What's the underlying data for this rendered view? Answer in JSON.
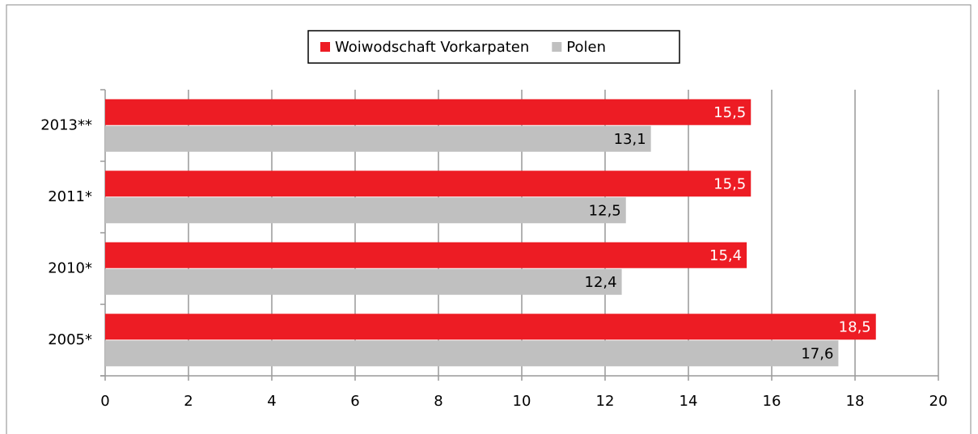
{
  "chart_data": {
    "type": "bar",
    "orientation": "horizontal",
    "categories": [
      "2013**",
      "2011*",
      "2010*",
      "2005*"
    ],
    "series": [
      {
        "name": "Woiwodschaft Vorkarpaten",
        "color": "#ed1c24",
        "values": [
          15.5,
          15.5,
          15.4,
          18.5
        ],
        "value_labels": [
          "15,5",
          "15,5",
          "15,4",
          "18,5"
        ]
      },
      {
        "name": "Polen",
        "color": "#c0c0c0",
        "values": [
          13.1,
          12.5,
          12.4,
          17.6
        ],
        "value_labels": [
          "13,1",
          "12,5",
          "12,4",
          "17,6"
        ]
      }
    ],
    "xlim": [
      0,
      20
    ],
    "xticks": [
      0,
      2,
      4,
      6,
      8,
      10,
      12,
      14,
      16,
      18,
      20
    ],
    "grid": true,
    "legend": "top"
  }
}
